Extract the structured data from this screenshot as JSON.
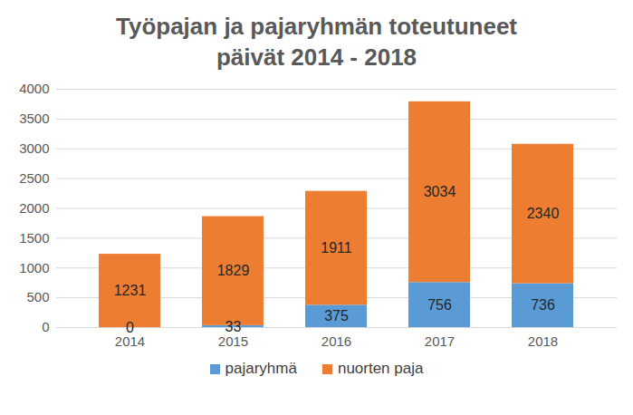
{
  "chart_data": {
    "type": "bar",
    "title": "Työpajan ja pajaryhmän toteutuneet päivät 2014 - 2018",
    "categories": [
      "2014",
      "2015",
      "2016",
      "2017",
      "2018"
    ],
    "series": [
      {
        "name": "pajaryhmä",
        "color": "#5b9bd5",
        "values": [
          0,
          33,
          375,
          756,
          736
        ]
      },
      {
        "name": "nuorten paja",
        "color": "#ed7d31",
        "values": [
          1231,
          1829,
          1911,
          3034,
          2340
        ]
      }
    ],
    "ylim": [
      0,
      4000
    ],
    "yticks": [
      0,
      500,
      1000,
      1500,
      2000,
      2500,
      3000,
      3500,
      4000
    ],
    "grid": true,
    "stacked": true,
    "data_labels": true,
    "legend": "bottom"
  }
}
